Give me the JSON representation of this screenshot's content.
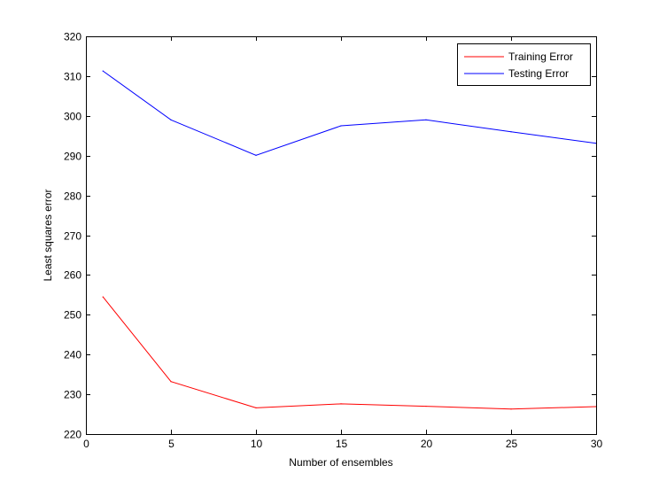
{
  "chart_data": {
    "type": "line",
    "title": "",
    "xlabel": "Number of ensembles",
    "ylabel": "Least squares error",
    "xlim": [
      0,
      30
    ],
    "ylim": [
      220,
      320
    ],
    "xticks": [
      0,
      5,
      10,
      15,
      20,
      25,
      30
    ],
    "yticks": [
      220,
      230,
      240,
      250,
      260,
      270,
      280,
      290,
      300,
      310,
      320
    ],
    "grid": false,
    "legend_position": "top-right",
    "x": [
      1,
      5,
      10,
      15,
      20,
      25,
      30
    ],
    "series": [
      {
        "name": "Training Error",
        "color": "#ff0000",
        "values": [
          254.5,
          233.2,
          226.6,
          227.6,
          227.0,
          226.3,
          226.9
        ]
      },
      {
        "name": "Testing Error",
        "color": "#0000ff",
        "values": [
          311.3,
          299.0,
          290.1,
          297.5,
          299.0,
          296.0,
          293.1
        ]
      }
    ]
  }
}
